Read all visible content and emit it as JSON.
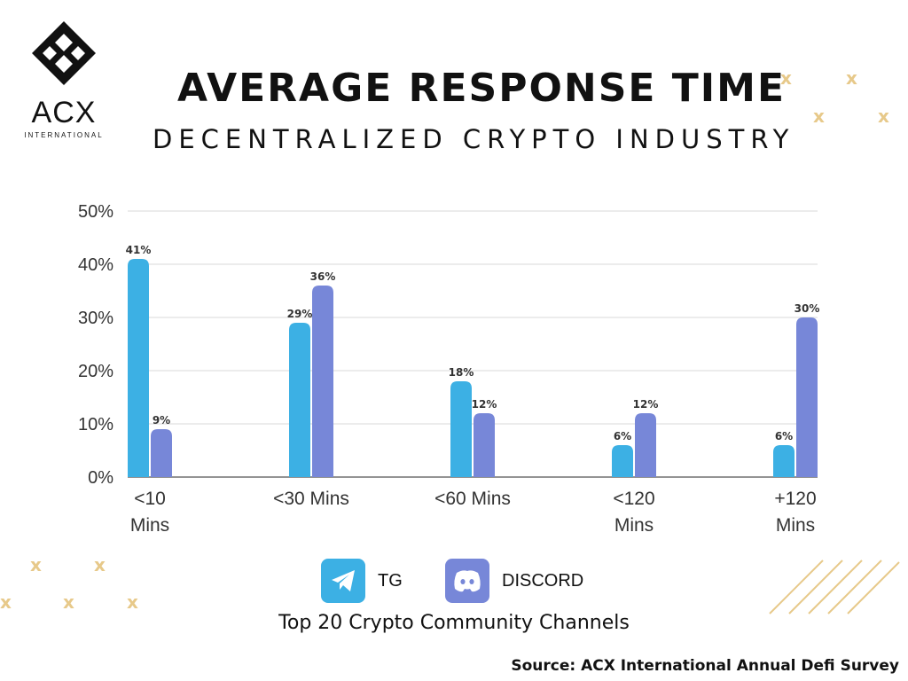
{
  "logo": {
    "word": "ACX",
    "sub": "INTERNATIONAL"
  },
  "title": "AVERAGE RESPONSE TIME",
  "subtitle": "DECENTRALIZED CRYPTO INDUSTRY",
  "legend": [
    {
      "label": "TG",
      "icon": "telegram-icon",
      "color": "#3cb0e4"
    },
    {
      "label": "DISCORD",
      "icon": "discord-icon",
      "color": "#7787d8"
    }
  ],
  "caption": "Top 20 Crypto Community Channels",
  "source": "Source: ACX International Annual Defi Survey",
  "colors": {
    "tg": "#3cb0e4",
    "discord": "#7787d8",
    "accent": "#e7c98a",
    "grid": "#d9d9d9"
  },
  "decor": {
    "mark": "x"
  },
  "chart_data": {
    "type": "bar",
    "categories": [
      [
        "<10",
        "Mins"
      ],
      [
        "<30 Mins"
      ],
      [
        "<60 Mins"
      ],
      [
        "<120",
        "Mins"
      ],
      [
        "+120",
        "Mins"
      ]
    ],
    "series": [
      {
        "name": "TG",
        "values": [
          41,
          29,
          18,
          6,
          6
        ],
        "labels": [
          "41%",
          "29%",
          "18%",
          "6%",
          "6%"
        ]
      },
      {
        "name": "DISCORD",
        "values": [
          9,
          36,
          12,
          12,
          30
        ],
        "labels": [
          "9%",
          "36%",
          "12%",
          "12%",
          "30%"
        ]
      }
    ],
    "ylim": [
      0,
      50
    ],
    "yticks": [
      0,
      10,
      20,
      30,
      40,
      50
    ],
    "ytick_labels": [
      "0%",
      "10%",
      "20%",
      "30%",
      "40%",
      "50%"
    ],
    "grid": true,
    "legend_position": "bottom"
  }
}
